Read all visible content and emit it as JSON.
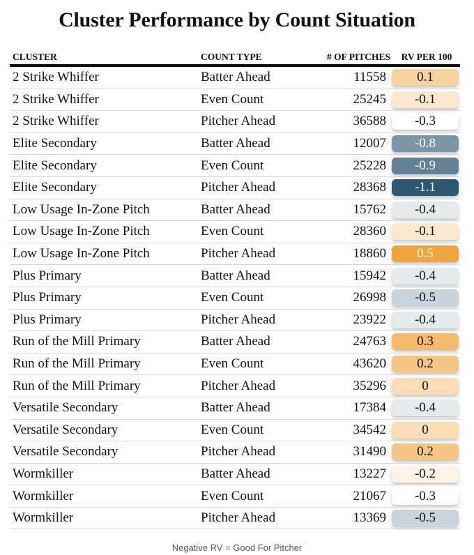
{
  "title": "Cluster Performance by Count Situation",
  "footer": "Negative RV = Good For Pitcher",
  "colors": {
    "positive": "#f0a43c",
    "neutral": "#ffffff",
    "negative": "#2c5870"
  },
  "chart_data": {
    "type": "table",
    "columns": [
      "CLUSTER",
      "COUNT TYPE",
      "# OF PITCHES",
      "RV PER 100"
    ],
    "rows": [
      {
        "cluster": "2 Strike Whiffer",
        "count_type": "Batter Ahead",
        "pitches": "11558",
        "rv": "0.1"
      },
      {
        "cluster": "2 Strike Whiffer",
        "count_type": "Even Count",
        "pitches": "25245",
        "rv": "-0.1"
      },
      {
        "cluster": "2 Strike Whiffer",
        "count_type": "Pitcher Ahead",
        "pitches": "36588",
        "rv": "-0.3"
      },
      {
        "cluster": "Elite Secondary",
        "count_type": "Batter Ahead",
        "pitches": "12007",
        "rv": "-0.8"
      },
      {
        "cluster": "Elite Secondary",
        "count_type": "Even Count",
        "pitches": "25228",
        "rv": "-0.9"
      },
      {
        "cluster": "Elite Secondary",
        "count_type": "Pitcher Ahead",
        "pitches": "28368",
        "rv": "-1.1"
      },
      {
        "cluster": "Low Usage In-Zone Pitch",
        "count_type": "Batter Ahead",
        "pitches": "15762",
        "rv": "-0.4"
      },
      {
        "cluster": "Low Usage In-Zone Pitch",
        "count_type": "Even Count",
        "pitches": "28360",
        "rv": "-0.1"
      },
      {
        "cluster": "Low Usage In-Zone Pitch",
        "count_type": "Pitcher Ahead",
        "pitches": "18860",
        "rv": "0.5"
      },
      {
        "cluster": "Plus Primary",
        "count_type": "Batter Ahead",
        "pitches": "15942",
        "rv": "-0.4"
      },
      {
        "cluster": "Plus Primary",
        "count_type": "Even Count",
        "pitches": "26998",
        "rv": "-0.5"
      },
      {
        "cluster": "Plus Primary",
        "count_type": "Pitcher Ahead",
        "pitches": "23922",
        "rv": "-0.4"
      },
      {
        "cluster": "Run of the Mill Primary",
        "count_type": "Batter Ahead",
        "pitches": "24763",
        "rv": "0.3"
      },
      {
        "cluster": "Run of the Mill Primary",
        "count_type": "Even Count",
        "pitches": "43620",
        "rv": "0.2"
      },
      {
        "cluster": "Run of the Mill Primary",
        "count_type": "Pitcher Ahead",
        "pitches": "35296",
        "rv": "0"
      },
      {
        "cluster": "Versatile Secondary",
        "count_type": "Batter Ahead",
        "pitches": "17384",
        "rv": "-0.4"
      },
      {
        "cluster": "Versatile Secondary",
        "count_type": "Even Count",
        "pitches": "34542",
        "rv": "0"
      },
      {
        "cluster": "Versatile Secondary",
        "count_type": "Pitcher Ahead",
        "pitches": "31490",
        "rv": "0.2"
      },
      {
        "cluster": "Wormkiller",
        "count_type": "Batter Ahead",
        "pitches": "13227",
        "rv": "-0.2"
      },
      {
        "cluster": "Wormkiller",
        "count_type": "Even Count",
        "pitches": "21067",
        "rv": "-0.3"
      },
      {
        "cluster": "Wormkiller",
        "count_type": "Pitcher Ahead",
        "pitches": "13369",
        "rv": "-0.5"
      }
    ]
  }
}
